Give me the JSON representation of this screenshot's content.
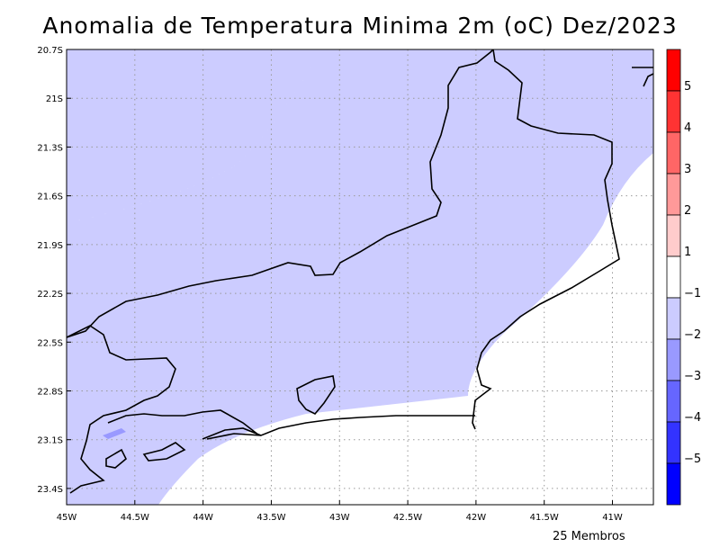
{
  "title": "Anomalia de Temperatura Minima 2m (oC) Dez/2023",
  "footer": "25 Membros",
  "map": {
    "lon_range": [
      -45.0,
      -40.7
    ],
    "lat_range": [
      -23.5,
      -20.7
    ],
    "x_ticks": [
      {
        "lon": -45.0,
        "label": "45W"
      },
      {
        "lon": -44.5,
        "label": "44.5W"
      },
      {
        "lon": -44.0,
        "label": "44W"
      },
      {
        "lon": -43.5,
        "label": "43.5W"
      },
      {
        "lon": -43.0,
        "label": "43W"
      },
      {
        "lon": -42.5,
        "label": "42.5W"
      },
      {
        "lon": -42.0,
        "label": "42W"
      },
      {
        "lon": -41.5,
        "label": "41.5W"
      },
      {
        "lon": -41.0,
        "label": "41W"
      }
    ],
    "y_ticks": [
      {
        "lat": -20.7,
        "label": "20.7S"
      },
      {
        "lat": -21.0,
        "label": "21S"
      },
      {
        "lat": -21.3,
        "label": "21.3S"
      },
      {
        "lat": -21.6,
        "label": "21.6S"
      },
      {
        "lat": -21.9,
        "label": "21.9S"
      },
      {
        "lat": -22.2,
        "label": "22.2S"
      },
      {
        "lat": -22.5,
        "label": "22.5S"
      },
      {
        "lat": -22.8,
        "label": "22.8S"
      },
      {
        "lat": -23.1,
        "label": "23.1S"
      },
      {
        "lat": -23.4,
        "label": "23.4S"
      }
    ],
    "shading_color": "#ccccff",
    "shading_class": "-2 to -1",
    "border_color": "#000000"
  },
  "colorbar": {
    "segments": [
      {
        "color": "#ff0000"
      },
      {
        "color": "#ff3333"
      },
      {
        "color": "#ff6666"
      },
      {
        "color": "#ff9999"
      },
      {
        "color": "#ffcccc"
      },
      {
        "color": "#ffffff"
      },
      {
        "color": "#ccccff"
      },
      {
        "color": "#9999ff"
      },
      {
        "color": "#6666ff"
      },
      {
        "color": "#3333ff"
      },
      {
        "color": "#0000ff"
      }
    ],
    "labels": [
      "5",
      "4",
      "3",
      "2",
      "1",
      "−1",
      "−2",
      "−3",
      "−4",
      "−5"
    ]
  }
}
